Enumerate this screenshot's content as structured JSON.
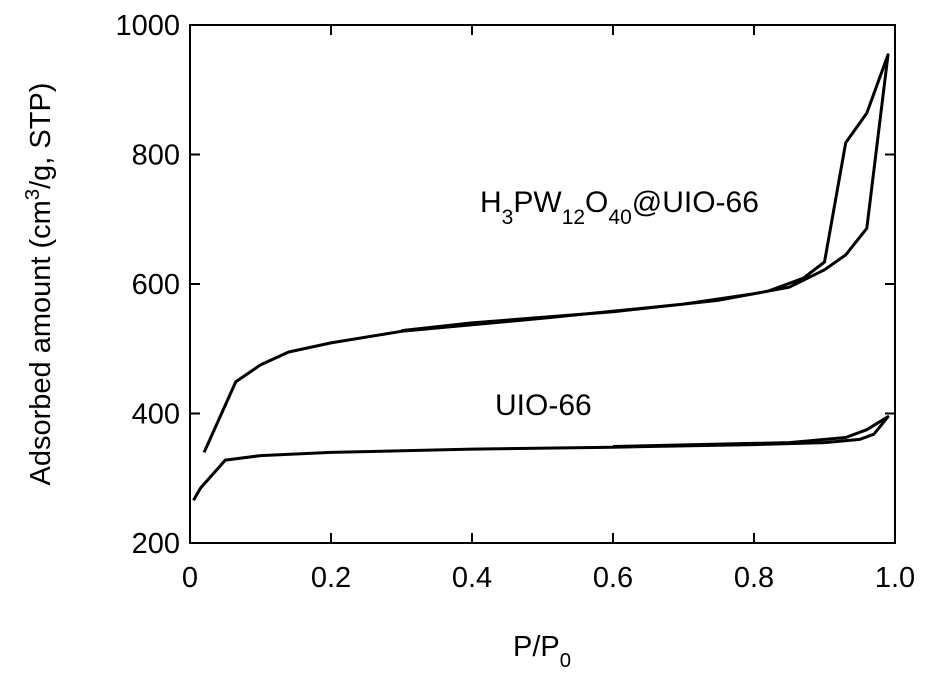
{
  "chart_data": {
    "type": "line",
    "x_label": "P/P0",
    "y_label": "Adsorbed amount (cm3/g, STP)",
    "xlim": [
      0,
      1
    ],
    "ylim": [
      200,
      1000
    ],
    "xticks": [
      0,
      0.2,
      0.4,
      0.6,
      0.8,
      {
        "value": 1,
        "label": "1.0"
      }
    ],
    "yticks": [
      200,
      400,
      600,
      800,
      1000
    ],
    "series": [
      {
        "name": "H3PW12O40@UIO-66",
        "color": "#000000",
        "x": [
          0.02,
          0.065,
          0.1,
          0.14,
          0.2,
          0.3,
          0.5,
          0.7,
          0.8,
          0.85,
          0.9,
          0.93,
          0.96,
          0.99,
          0.96,
          0.93,
          0.9,
          0.87,
          0.82,
          0.75,
          0.6,
          0.4,
          0.3
        ],
        "values": [
          340,
          449,
          475,
          495,
          509,
          527,
          547,
          569,
          585,
          595,
          622,
          645,
          686,
          954,
          864,
          818,
          634,
          609,
          589,
          575,
          557,
          540,
          528
        ]
      },
      {
        "name": "UIO-66",
        "color": "#000000",
        "x": [
          0.005,
          0.015,
          0.05,
          0.1,
          0.2,
          0.4,
          0.6,
          0.8,
          0.9,
          0.95,
          0.97,
          0.99,
          0.96,
          0.93,
          0.85,
          0.6
        ],
        "values": [
          266,
          285,
          328,
          335,
          340,
          345,
          348,
          352,
          355,
          360,
          368,
          395,
          375,
          363,
          355,
          349
        ]
      }
    ]
  }
}
